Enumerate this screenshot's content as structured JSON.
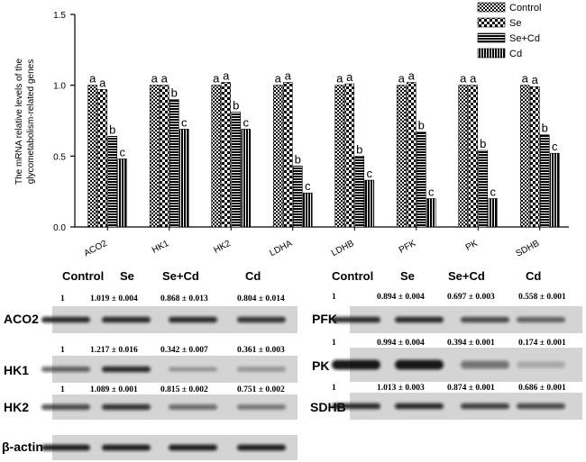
{
  "chart_data": {
    "type": "bar",
    "ylabel_lines": [
      "The mRNA relative levels of the",
      "glycometabolism-related genes"
    ],
    "ylim": [
      0,
      1.5
    ],
    "yticks": [
      "0.0",
      "0.5",
      "1.0",
      "1.5"
    ],
    "categories": [
      "ACO2",
      "HK1",
      "HK2",
      "LDHA",
      "LDHB",
      "PFK",
      "PK",
      "SDHB"
    ],
    "series": [
      {
        "name": "Control",
        "pattern": "checker",
        "values": [
          1.0,
          1.0,
          1.0,
          1.0,
          1.0,
          1.0,
          1.0,
          1.0
        ],
        "letters": [
          "a",
          "a",
          "a",
          "a",
          "a",
          "a",
          "a",
          "a"
        ]
      },
      {
        "name": "Se",
        "pattern": "crosshatch",
        "values": [
          0.97,
          1.0,
          1.02,
          1.02,
          1.01,
          1.02,
          1.0,
          0.99
        ],
        "letters": [
          "a",
          "a",
          "a",
          "a",
          "a",
          "a",
          "a",
          "a"
        ]
      },
      {
        "name": "Se+Cd",
        "pattern": "hlines",
        "values": [
          0.64,
          0.9,
          0.81,
          0.43,
          0.5,
          0.67,
          0.54,
          0.65
        ],
        "letters": [
          "b",
          "b",
          "b",
          "b",
          "b",
          "b",
          "b",
          "b"
        ]
      },
      {
        "name": "Cd",
        "pattern": "vlines",
        "values": [
          0.48,
          0.69,
          0.69,
          0.24,
          0.33,
          0.2,
          0.2,
          0.52
        ],
        "letters": [
          "c",
          "c",
          "c",
          "c",
          "c",
          "c",
          "c",
          "c"
        ]
      }
    ]
  },
  "western": {
    "left": {
      "headers": [
        "Control",
        "Se",
        "Se+Cd",
        "Cd"
      ],
      "rows": [
        {
          "protein": "ACO2",
          "values": [
            "1",
            "1.019 ± 0.004",
            "0.868 ± 0.013",
            "0.804 ± 0.014"
          ]
        },
        {
          "protein": "HK1",
          "values": [
            "1",
            "1.217 ± 0.016",
            "0.342 ± 0.007",
            "0.361 ± 0.003"
          ]
        },
        {
          "protein": "HK2",
          "values": [
            "1",
            "1.089 ± 0.001",
            "0.815 ± 0.002",
            "0.751 ± 0.002"
          ]
        },
        {
          "protein": "β-actin",
          "values": []
        }
      ]
    },
    "right": {
      "headers": [
        "Control",
        "Se",
        "Se+Cd",
        "Cd"
      ],
      "rows": [
        {
          "protein": "PFK",
          "values": [
            "1",
            "0.894 ± 0.004",
            "0.697 ± 0.003",
            "0.558 ± 0.001"
          ]
        },
        {
          "protein": "PK",
          "values": [
            "1",
            "0.994 ± 0.004",
            "0.394 ± 0.001",
            "0.174 ± 0.001"
          ]
        },
        {
          "protein": "SDHB",
          "values": [
            "1",
            "1.013 ± 0.003",
            "0.874 ± 0.001",
            "0.686 ± 0.001"
          ]
        }
      ]
    },
    "band_intensity": {
      "ACO2": [
        0.85,
        0.85,
        0.85,
        0.8
      ],
      "HK1": [
        0.6,
        0.85,
        0.3,
        0.35
      ],
      "HK2": [
        0.7,
        0.8,
        0.55,
        0.5
      ],
      "β-actin": [
        0.9,
        0.9,
        0.9,
        0.9
      ],
      "PFK": [
        0.85,
        0.85,
        0.7,
        0.6
      ],
      "PK": [
        0.95,
        0.95,
        0.5,
        0.2
      ],
      "SDHB": [
        0.85,
        0.85,
        0.75,
        0.7
      ]
    }
  }
}
